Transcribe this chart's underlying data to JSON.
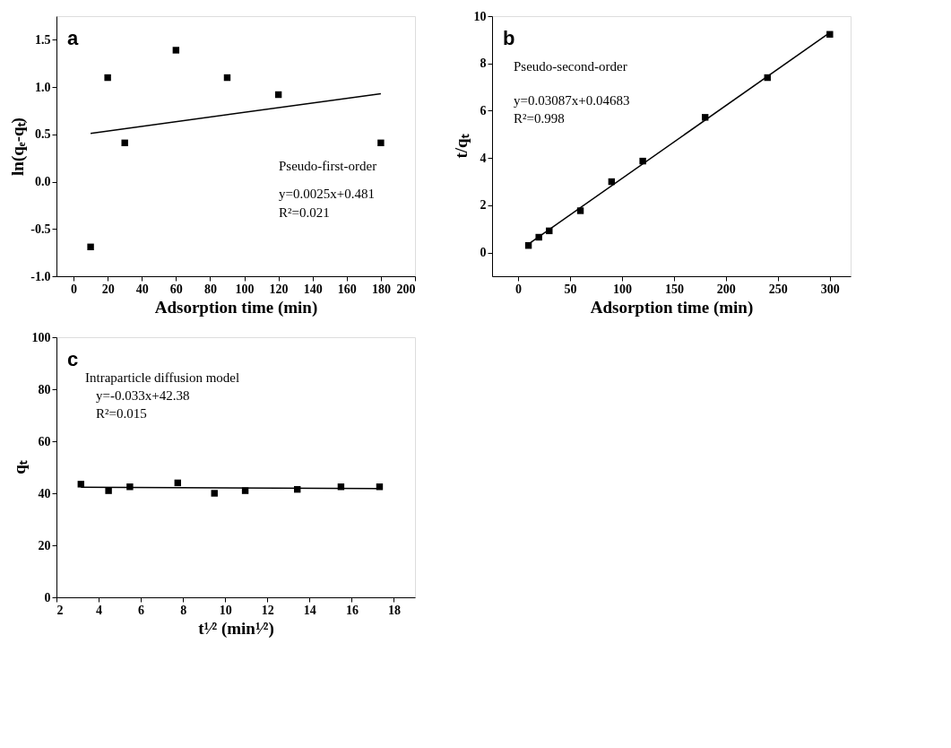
{
  "chart_data": [
    {
      "type": "scatter",
      "xlabel": "Adsorption time (min)",
      "ylabel": "ln(qₑ-qₜ)",
      "grid": false,
      "legend": false,
      "annotations": [
        "a",
        "Pseudo-first-order",
        "y=0.0025x+0.481",
        "R²=0.021"
      ],
      "xlim": [
        -10,
        200
      ],
      "xticks": [
        0,
        20,
        40,
        60,
        80,
        100,
        120,
        140,
        160,
        180,
        200
      ],
      "ylim": [
        -1,
        1.75
      ],
      "yticks": [
        {
          "value": -1,
          "label": "-1.0"
        },
        {
          "value": -0.5,
          "label": "-0.5"
        },
        {
          "value": 0,
          "label": "0.0"
        },
        {
          "value": 0.5,
          "label": "0.5"
        },
        {
          "value": 1,
          "label": "1.0"
        },
        {
          "value": 1.5,
          "label": "1.5"
        }
      ],
      "series": [
        {
          "marker": "square",
          "color": "#000000",
          "x": [
            10,
            20,
            30,
            60,
            90,
            120,
            180
          ],
          "values": [
            -0.69,
            1.1,
            0.41,
            1.39,
            1.1,
            0.92,
            0.41
          ]
        },
        {
          "type": "line",
          "marker": "none",
          "color": "#000000",
          "x": [
            10,
            180
          ],
          "values": [
            0.51,
            0.93
          ]
        }
      ]
    },
    {
      "type": "scatter",
      "xlabel": "Adsorption time (min)",
      "ylabel": "t/qₜ",
      "grid": false,
      "legend": false,
      "annotations": [
        "b",
        "Pseudo-second-order",
        "y=0.03087x+0.04683",
        "R²=0.998"
      ],
      "xlim": [
        -25,
        320
      ],
      "xticks": [
        0,
        50,
        100,
        150,
        200,
        250,
        300
      ],
      "ylim": [
        -1,
        10
      ],
      "yticks": [
        0,
        2,
        4,
        6,
        8,
        10
      ],
      "series": [
        {
          "marker": "square",
          "color": "#000000",
          "x": [
            10,
            20,
            30,
            60,
            90,
            120,
            180,
            240,
            300
          ],
          "values": [
            0.3,
            0.65,
            0.92,
            1.77,
            3.0,
            3.87,
            5.72,
            7.4,
            9.23
          ]
        },
        {
          "type": "line",
          "marker": "none",
          "color": "#000000",
          "x": [
            10,
            300
          ],
          "values": [
            0.36,
            9.3
          ]
        }
      ]
    },
    {
      "type": "scatter",
      "xlabel": "t¹⁄² (min¹⁄²)",
      "ylabel": "qₜ",
      "grid": false,
      "legend": false,
      "annotations": [
        "c",
        "Intraparticle diffusion model",
        "y=-0.033x+42.38",
        "R²=0.015"
      ],
      "xlim": [
        2,
        19
      ],
      "xticks": [
        2,
        4,
        6,
        8,
        10,
        12,
        14,
        16,
        18
      ],
      "ylim": [
        0,
        100
      ],
      "yticks": [
        0,
        20,
        40,
        60,
        80,
        100
      ],
      "series": [
        {
          "marker": "square",
          "color": "#000000",
          "x": [
            3.16,
            4.47,
            5.48,
            7.75,
            9.49,
            10.95,
            13.42,
            15.49,
            17.32
          ],
          "values": [
            43.5,
            41,
            42.5,
            44,
            40,
            41,
            41.5,
            42.5,
            42.5
          ]
        },
        {
          "type": "line",
          "marker": "none",
          "color": "#000000",
          "x": [
            3.16,
            17.32
          ],
          "values": [
            42.3,
            41.8
          ]
        }
      ]
    }
  ]
}
